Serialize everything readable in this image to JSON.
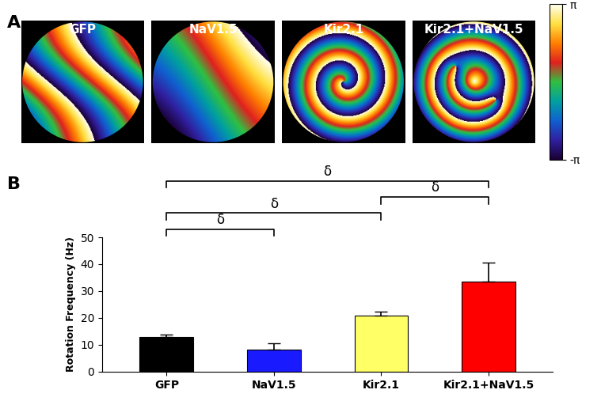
{
  "panel_a": {
    "panel_label": "A",
    "maps": [
      "GFP",
      "NaV1.5",
      "Kir2.1",
      "Kir2.1+NaV1.5"
    ],
    "colorbar": {
      "range": [
        -3.14159,
        3.14159
      ],
      "ticks": [
        {
          "value": -3.14159,
          "label": "-π"
        },
        {
          "value": 3.14159,
          "label": "π"
        }
      ]
    }
  },
  "chart_data": {
    "type": "bar",
    "panel_label": "B",
    "categories": [
      "GFP",
      "NaV1.5",
      "Kir2.1",
      "Kir2.1+NaV1.5"
    ],
    "values": [
      12.8,
      8.2,
      20.8,
      33.5
    ],
    "errors": [
      1.0,
      2.5,
      1.5,
      7.0
    ],
    "colors": [
      "#000000",
      "#1a1aff",
      "#ffff66",
      "#ff0000"
    ],
    "y_label": "Rotation Frequency (Hz)",
    "ylim": [
      0,
      50
    ],
    "yticks": [
      0,
      10,
      20,
      30,
      40,
      50
    ],
    "significance": [
      {
        "pair": [
          "GFP",
          "NaV1.5"
        ],
        "label": "δ"
      },
      {
        "pair": [
          "GFP",
          "Kir2.1"
        ],
        "label": "δ"
      },
      {
        "pair": [
          "Kir2.1",
          "Kir2.1+NaV1.5"
        ],
        "label": "δ"
      },
      {
        "pair": [
          "GFP",
          "Kir2.1+NaV1.5"
        ],
        "label": "δ"
      }
    ]
  }
}
